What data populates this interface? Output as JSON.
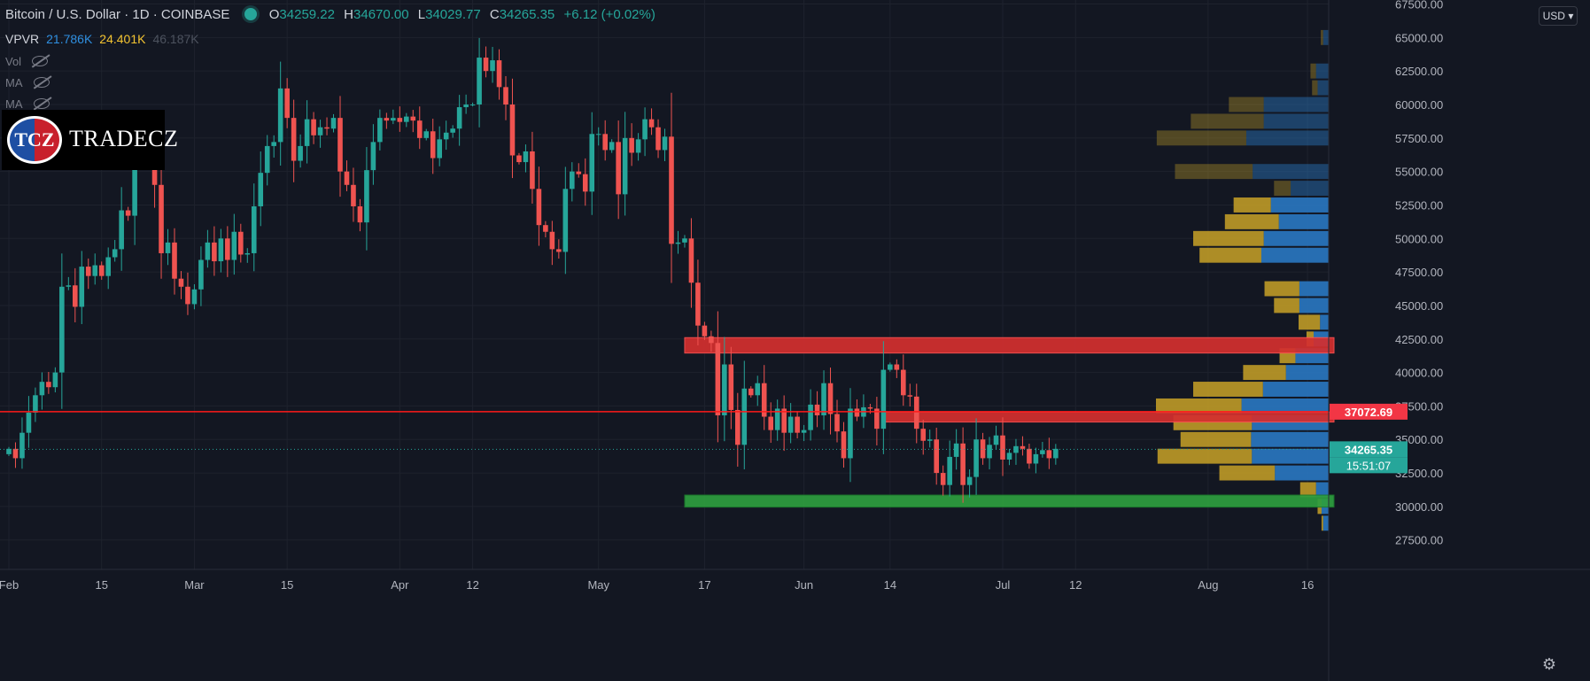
{
  "legend": {
    "symbol": "Bitcoin / U.S. Dollar · 1D · COINBASE",
    "o_label": "O",
    "o_value": "34259.22",
    "h_label": "H",
    "h_value": "34670.00",
    "l_label": "L",
    "l_value": "34029.77",
    "c_label": "C",
    "c_value": "34265.35",
    "change": "+6.12 (+0.02%)"
  },
  "vpvr": {
    "name": "VPVR",
    "up": "21.786K",
    "down": "24.401K",
    "total": "46.187K"
  },
  "indicators": [
    "Vol",
    "MA",
    "MA"
  ],
  "logo": {
    "mark": "TCZ",
    "text": "TRADECZ"
  },
  "currency_button": "USD",
  "price_labels": {
    "red_line": "37072.69",
    "last": "34265.35",
    "countdown": "15:51:07"
  },
  "colors": {
    "background": "#131722",
    "up": "#26a69a",
    "down": "#ef5350",
    "zone_red": "#d32f2f",
    "zone_green": "#2e9e3f",
    "vp_up": "#c9a227",
    "vp_down": "#2a78c2"
  },
  "chart_data": {
    "type": "candlestick",
    "y_ticks": [
      "27500.00",
      "30000.00",
      "32500.00",
      "35000.00",
      "37500.00",
      "40000.00",
      "42500.00",
      "45000.00",
      "47500.00",
      "50000.00",
      "52500.00",
      "55000.00",
      "57500.00",
      "60000.00",
      "62500.00",
      "65000.00",
      "67500.00"
    ],
    "ylim": [
      25300,
      67800
    ],
    "x_ticks": [
      {
        "label": "Feb",
        "day": 0
      },
      {
        "label": "15",
        "day": 14
      },
      {
        "label": "Mar",
        "day": 28
      },
      {
        "label": "15",
        "day": 42
      },
      {
        "label": "Apr",
        "day": 59
      },
      {
        "label": "12",
        "day": 70
      },
      {
        "label": "May",
        "day": 89
      },
      {
        "label": "17",
        "day": 105
      },
      {
        "label": "Jun",
        "day": 120
      },
      {
        "label": "14",
        "day": 133
      },
      {
        "label": "Jul",
        "day": 150
      },
      {
        "label": "12",
        "day": 161
      },
      {
        "label": "Aug",
        "day": 181
      },
      {
        "label": "16",
        "day": 196
      }
    ],
    "closes": [
      34300,
      33600,
      35500,
      37000,
      38300,
      39300,
      38900,
      40000,
      46400,
      46500,
      44900,
      47900,
      47200,
      48000,
      47200,
      48600,
      49200,
      52100,
      51700,
      55900,
      55900,
      57500,
      54000,
      48900,
      49700,
      47000,
      46400,
      45100,
      46200,
      48400,
      49700,
      48300,
      50000,
      48400,
      50500,
      48800,
      48900,
      52400,
      54900,
      56900,
      57200,
      61200,
      59000,
      55800,
      56900,
      58900,
      57700,
      58300,
      58200,
      59000,
      55000,
      54000,
      52400,
      51200,
      55100,
      57200,
      59000,
      58800,
      59000,
      58700,
      59100,
      58800,
      57500,
      58000,
      56000,
      57400,
      57900,
      58200,
      59800,
      60000,
      60000,
      63500,
      62500,
      63300,
      61300,
      60000,
      56200,
      55700,
      56500,
      53700,
      51000,
      50500,
      49200,
      49000,
      53700,
      55000,
      54800,
      53500,
      57800,
      57800,
      56600,
      57200,
      53300,
      57500,
      56400,
      57400,
      58900,
      58300,
      56600,
      57600,
      49600,
      49700,
      50000,
      46700,
      43500,
      42700,
      42200,
      36800,
      40600,
      37200,
      34600,
      38800,
      38300,
      39200,
      36700,
      35700,
      37300,
      35500,
      36700,
      35500,
      35700,
      37600,
      36800,
      39200,
      36900,
      35600,
      33600,
      37300,
      36700,
      37400,
      37300,
      35800,
      40200,
      40600,
      40200,
      38300,
      38200,
      35800,
      34900,
      35000,
      32500,
      31600,
      33700,
      34700,
      31600,
      32200,
      35000,
      33600,
      34600,
      35300,
      33500,
      34000,
      34500,
      34300,
      33200,
      33900,
      34200,
      33600,
      34300
    ],
    "vp_levels": [
      {
        "price": 65000,
        "up": 0.3,
        "down": 0.7
      },
      {
        "price": 62500,
        "up": 0.7,
        "down": 1.6
      },
      {
        "price": 61250,
        "up": 0.7,
        "down": 1.4
      },
      {
        "price": 60000,
        "up": 4.4,
        "down": 8.2
      },
      {
        "price": 58750,
        "up": 9.2,
        "down": 8.2
      },
      {
        "price": 57500,
        "up": 11.3,
        "down": 10.4
      },
      {
        "price": 55000,
        "up": 9.8,
        "down": 9.6
      },
      {
        "price": 53750,
        "up": 2.1,
        "down": 4.8
      },
      {
        "price": 52500,
        "up": 4.7,
        "down": 7.3
      },
      {
        "price": 51250,
        "up": 6.8,
        "down": 6.3
      },
      {
        "price": 50000,
        "up": 8.9,
        "down": 8.2
      },
      {
        "price": 48750,
        "up": 7.8,
        "down": 8.5
      },
      {
        "price": 46250,
        "up": 4.4,
        "down": 3.7
      },
      {
        "price": 45000,
        "up": 3.2,
        "down": 3.7
      },
      {
        "price": 43750,
        "up": 2.7,
        "down": 1.1
      },
      {
        "price": 42500,
        "up": 0.9,
        "down": 1.9
      },
      {
        "price": 41250,
        "up": 2.0,
        "down": 4.2
      },
      {
        "price": 40000,
        "up": 5.4,
        "down": 5.4
      },
      {
        "price": 38750,
        "up": 8.8,
        "down": 8.3
      },
      {
        "price": 37500,
        "up": 10.8,
        "down": 11.0
      },
      {
        "price": 36250,
        "up": 9.9,
        "down": 9.7
      },
      {
        "price": 35000,
        "up": 8.9,
        "down": 9.8
      },
      {
        "price": 33750,
        "up": 11.9,
        "down": 9.7
      },
      {
        "price": 32500,
        "up": 7.0,
        "down": 6.8
      },
      {
        "price": 31250,
        "up": 2.0,
        "down": 1.6
      },
      {
        "price": 30000,
        "up": 0.5,
        "down": 0.9
      },
      {
        "price": 28750,
        "up": 0.2,
        "down": 0.7
      }
    ],
    "zones": [
      {
        "color": "red",
        "from_day": 102,
        "to_day": 200,
        "low": 41450,
        "high": 42600
      },
      {
        "color": "red",
        "from_day": 132,
        "to_day": 200,
        "low": 36300,
        "high": 37050
      },
      {
        "color": "green",
        "from_day": 102,
        "to_day": 200,
        "low": 29950,
        "high": 30850
      }
    ],
    "horizontal_line": 37072.69,
    "last_price": 34265.35
  }
}
